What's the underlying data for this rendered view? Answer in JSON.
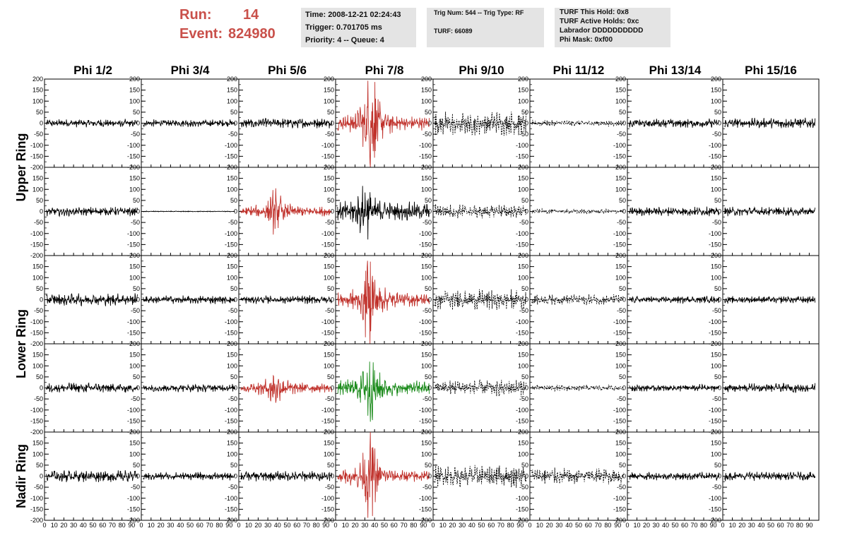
{
  "header": {
    "run_label": "Run:",
    "run_value": "14",
    "event_label": "Event:",
    "event_value": "824980",
    "time": "Time: 2008-12-21 02:24:43",
    "trigger": "Trigger: 0.701705 ms",
    "priority": "Priority: 4 -- Queue: 4",
    "trig_num": "Trig Num: 544 -- Trig Type: RF",
    "turf": "TURF: 66089",
    "turf_hold": "TURF This Hold: 0x8",
    "turf_active": "TURF Active Holds: 0xc",
    "labrador": "Labrador DDDDDDDDDD",
    "phi_mask": "Phi Mask: 0xf00"
  },
  "colors": {
    "black": "#000000",
    "red": "#c0312b",
    "green": "#1a8a1a",
    "accent": "#c9504a",
    "panel_bg": "#e4e4e4"
  },
  "chart_data": {
    "type": "line",
    "columns": [
      "Phi 1/2",
      "Phi 3/4",
      "Phi 5/6",
      "Phi 7/8",
      "Phi 9/10",
      "Phi 11/12",
      "Phi 13/14",
      "Phi 15/16"
    ],
    "ring_labels": [
      "Upper Ring",
      "Lower Ring",
      "Nadir Ring"
    ],
    "rows": 5,
    "xlim": [
      0,
      100
    ],
    "ylim": [
      -200,
      200
    ],
    "x_ticks": [
      0,
      10,
      20,
      30,
      40,
      50,
      60,
      70,
      80,
      90
    ],
    "y_ticks": [
      200,
      150,
      100,
      50,
      0,
      -50,
      -100,
      -150,
      -200
    ],
    "traces": [
      [
        {
          "amp": 20,
          "style": "solid",
          "color": "black"
        },
        {
          "amp": 18,
          "style": "solid",
          "color": "black"
        },
        {
          "amp": 25,
          "style": "solid",
          "color": "black"
        },
        {
          "amp": 35,
          "style": "solid",
          "color": "red",
          "pulse": 200,
          "pulse_center": 37
        },
        {
          "amp": 60,
          "style": "dashed",
          "color": "black"
        },
        {
          "amp": 15,
          "style": "dashed",
          "color": "black"
        },
        {
          "amp": 22,
          "style": "solid",
          "color": "black"
        },
        {
          "amp": 25,
          "style": "solid",
          "color": "black"
        }
      ],
      [
        {
          "amp": 22,
          "style": "solid",
          "color": "black"
        },
        {
          "amp": 2,
          "style": "solid",
          "color": "black"
        },
        {
          "amp": 25,
          "style": "solid",
          "color": "red",
          "pulse": 70,
          "pulse_center": 38
        },
        {
          "amp": 45,
          "style": "solid",
          "color": "black",
          "pulse": 80,
          "pulse_center": 30
        },
        {
          "amp": 35,
          "style": "dashed",
          "color": "black"
        },
        {
          "amp": 12,
          "style": "dashed",
          "color": "black"
        },
        {
          "amp": 22,
          "style": "solid",
          "color": "black"
        },
        {
          "amp": 22,
          "style": "solid",
          "color": "black"
        }
      ],
      [
        {
          "amp": 30,
          "style": "solid",
          "color": "black"
        },
        {
          "amp": 20,
          "style": "solid",
          "color": "black"
        },
        {
          "amp": 20,
          "style": "solid",
          "color": "black"
        },
        {
          "amp": 35,
          "style": "solid",
          "color": "red",
          "pulse": 160,
          "pulse_center": 35
        },
        {
          "amp": 50,
          "style": "dashed",
          "color": "black"
        },
        {
          "amp": 25,
          "style": "dashed",
          "color": "black"
        },
        {
          "amp": 18,
          "style": "solid",
          "color": "black"
        },
        {
          "amp": 18,
          "style": "solid",
          "color": "black"
        }
      ],
      [
        {
          "amp": 25,
          "style": "solid",
          "color": "black"
        },
        {
          "amp": 20,
          "style": "solid",
          "color": "black"
        },
        {
          "amp": 25,
          "style": "solid",
          "color": "red",
          "pulse": 70,
          "pulse_center": 38
        },
        {
          "amp": 35,
          "style": "solid",
          "color": "green",
          "pulse": 130,
          "pulse_center": 35
        },
        {
          "amp": 40,
          "style": "dashed",
          "color": "black"
        },
        {
          "amp": 15,
          "style": "dashed",
          "color": "black"
        },
        {
          "amp": 18,
          "style": "solid",
          "color": "black"
        },
        {
          "amp": 22,
          "style": "solid",
          "color": "black"
        }
      ],
      [
        {
          "amp": 30,
          "style": "solid",
          "color": "black"
        },
        {
          "amp": 20,
          "style": "solid",
          "color": "black"
        },
        {
          "amp": 25,
          "style": "solid",
          "color": "black"
        },
        {
          "amp": 30,
          "style": "solid",
          "color": "red",
          "pulse": 140,
          "pulse_center": 35
        },
        {
          "amp": 55,
          "style": "dashed",
          "color": "black"
        },
        {
          "amp": 40,
          "style": "dashed",
          "color": "black"
        },
        {
          "amp": 20,
          "style": "solid",
          "color": "black"
        },
        {
          "amp": 22,
          "style": "solid",
          "color": "black"
        }
      ]
    ]
  }
}
